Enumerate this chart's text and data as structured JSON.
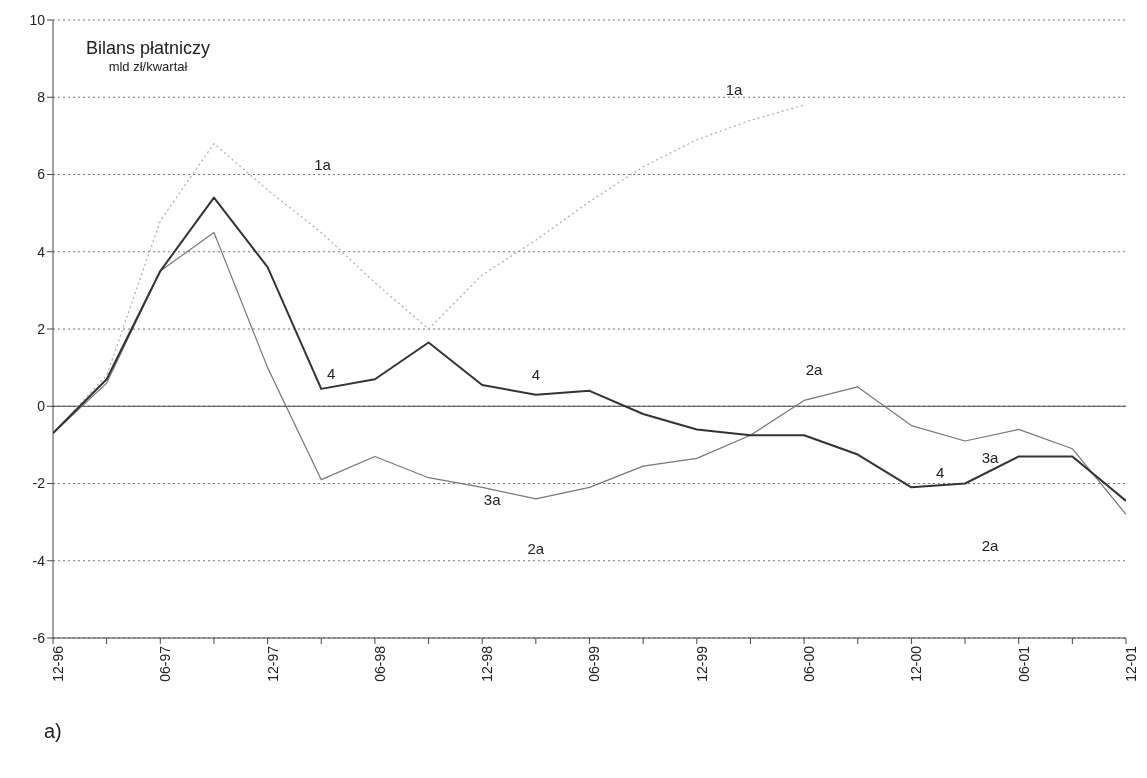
{
  "chart_data": {
    "type": "line",
    "title": "Bilans płatniczy",
    "subtitle": "mld zł/kwartał",
    "categories": [
      "12-96",
      null,
      "06-97",
      null,
      "12-97",
      null,
      "06-98",
      null,
      "12-98",
      null,
      "06-99",
      null,
      "12-99",
      null,
      "06-00",
      null,
      "12-00",
      null,
      "06-01",
      null,
      "12-01"
    ],
    "series": [
      {
        "name": "1a",
        "color": "#aaaaaa",
        "line_style": "dotted",
        "values": [
          -0.7,
          0.8,
          4.8,
          6.8,
          5.6,
          4.5,
          3.2,
          2.0,
          3.4,
          4.3,
          5.3,
          6.2,
          6.9,
          7.4,
          7.8,
          null,
          null,
          null,
          null,
          null,
          null
        ]
      },
      {
        "name": "3a",
        "color": "#777777",
        "line_style": "solid",
        "values": [
          -0.7,
          0.6,
          3.5,
          4.5,
          1.0,
          -1.9,
          -1.3,
          -1.85,
          -2.1,
          -2.4,
          -2.1,
          -1.55,
          -1.35,
          -0.75,
          0.15,
          0.5,
          -0.5,
          -0.9,
          -0.6,
          -1.1,
          -2.8
        ]
      },
      {
        "name": "4",
        "color": "#333333",
        "line_style": "solid",
        "values": [
          -0.7,
          0.7,
          3.5,
          5.4,
          3.6,
          0.45,
          0.7,
          1.65,
          0.55,
          0.3,
          0.4,
          -0.2,
          -0.6,
          -0.75,
          -0.75,
          -1.25,
          -2.1,
          -2.0,
          -1.3,
          -1.3,
          -2.45
        ]
      }
    ],
    "ylim": [
      -6,
      10
    ],
    "yticks": [
      -6,
      -4,
      -2,
      0,
      2,
      4,
      6,
      8,
      10
    ],
    "grid": "y",
    "marker": "none",
    "ref_lines": [
      {
        "axis": "y",
        "value": 0,
        "color": "#444444",
        "line_style": "solid"
      }
    ],
    "annotations": [
      "2a",
      "2a",
      "2a",
      "a)"
    ]
  }
}
